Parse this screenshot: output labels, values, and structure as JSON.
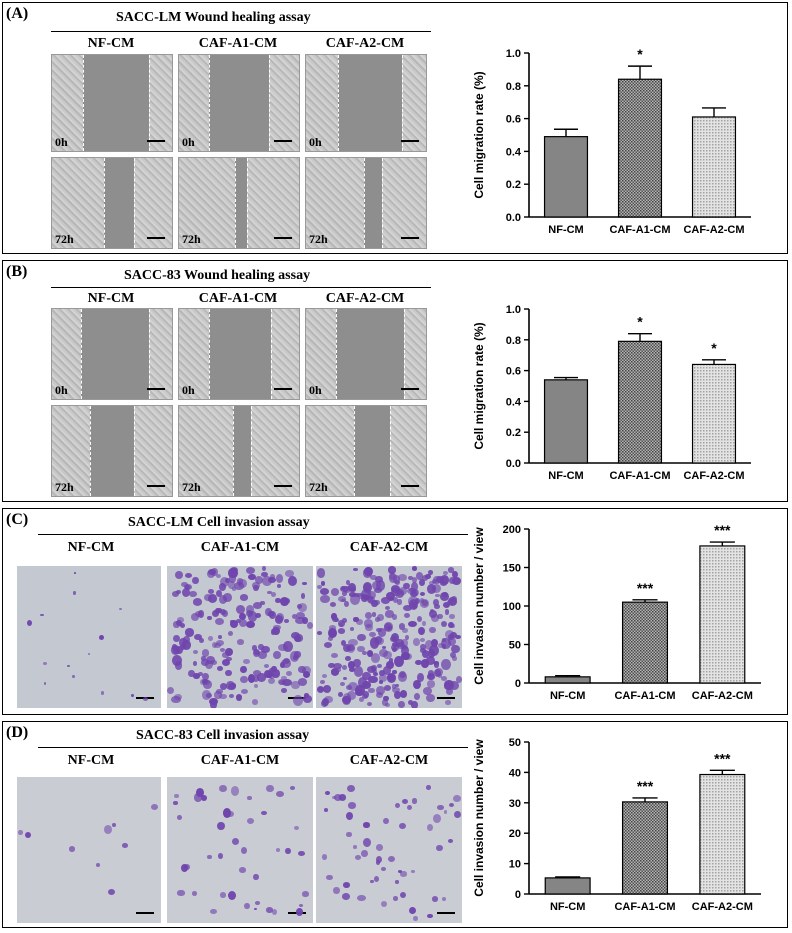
{
  "panels": [
    {
      "label": "(A)",
      "title": "SACC-LM  Wound healing assay",
      "groups": [
        "NF-CM",
        "CAF-A1-CM",
        "CAF-A2-CM"
      ],
      "time_labels": [
        "0h",
        "72h"
      ]
    },
    {
      "label": "(B)",
      "title": "SACC-83  Wound healing assay",
      "groups": [
        "NF-CM",
        "CAF-A1-CM",
        "CAF-A2-CM"
      ],
      "time_labels": [
        "0h",
        "72h"
      ]
    },
    {
      "label": "(C)",
      "title": "SACC-LM  Cell invasion assay",
      "groups": [
        "NF-CM",
        "CAF-A1-CM",
        "CAF-A2-CM"
      ]
    },
    {
      "label": "(D)",
      "title": "SACC-83  Cell invasion assay",
      "groups": [
        "NF-CM",
        "CAF-A1-CM",
        "CAF-A2-CM"
      ]
    }
  ],
  "chart_data": [
    {
      "type": "bar",
      "panel": "A",
      "categories": [
        "NF-CM",
        "CAF-A1-CM",
        "CAF-A2-CM"
      ],
      "values": [
        0.49,
        0.84,
        0.61
      ],
      "errors": [
        0.045,
        0.08,
        0.055
      ],
      "annotations": [
        "",
        "*",
        ""
      ],
      "ylabel": "Cell migration rate (%)",
      "ylim": [
        0,
        1.0
      ],
      "yticks": [
        "0.0",
        "0.2",
        "0.4",
        "0.6",
        "0.8",
        "1.0"
      ],
      "bar_fills": [
        "#858585",
        "pattern-dense",
        "pattern-light"
      ]
    },
    {
      "type": "bar",
      "panel": "B",
      "categories": [
        "NF-CM",
        "CAF-A1-CM",
        "CAF-A2-CM"
      ],
      "values": [
        0.54,
        0.79,
        0.64
      ],
      "errors": [
        0.015,
        0.05,
        0.03
      ],
      "annotations": [
        "",
        "*",
        "*"
      ],
      "ylabel": "Cell migration rate (%)",
      "ylim": [
        0,
        1.0
      ],
      "yticks": [
        "0.0",
        "0.2",
        "0.4",
        "0.6",
        "0.8",
        "1.0"
      ],
      "bar_fills": [
        "#858585",
        "pattern-dense",
        "pattern-light"
      ]
    },
    {
      "type": "bar",
      "panel": "C",
      "categories": [
        "NF-CM",
        "CAF-A1-CM",
        "CAF-A2-CM"
      ],
      "values": [
        8,
        105,
        178
      ],
      "errors": [
        1.5,
        3,
        5
      ],
      "annotations": [
        "",
        "***",
        "***"
      ],
      "ylabel": "Cell invasion number / view",
      "ylim": [
        0,
        200
      ],
      "yticks": [
        "0",
        "50",
        "100",
        "150",
        "200"
      ],
      "bar_fills": [
        "#858585",
        "pattern-dense",
        "pattern-light"
      ]
    },
    {
      "type": "bar",
      "panel": "D",
      "categories": [
        "NF-CM",
        "CAF-A1-CM",
        "CAF-A2-CM"
      ],
      "values": [
        5.3,
        30.3,
        39.3
      ],
      "errors": [
        0.3,
        1.3,
        1.4
      ],
      "annotations": [
        "",
        "***",
        "***"
      ],
      "ylabel": "Cell invasion number / view",
      "ylim": [
        0,
        50
      ],
      "yticks": [
        "0",
        "10",
        "20",
        "30",
        "40",
        "50"
      ],
      "bar_fills": [
        "#858585",
        "pattern-dense",
        "pattern-light"
      ]
    }
  ]
}
